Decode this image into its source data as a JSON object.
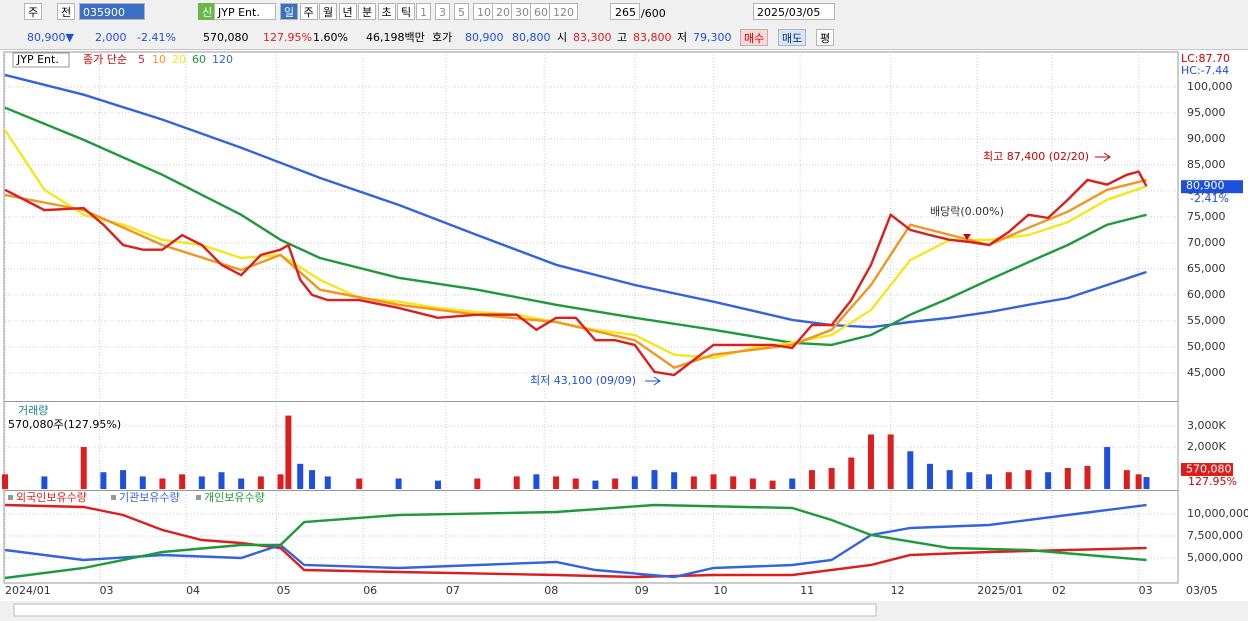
{
  "toolbar": {
    "period_unit": "주",
    "prev": "전",
    "code": "035900",
    "badge": "신",
    "name": "JYP Ent.",
    "periods": [
      "일",
      "주",
      "월",
      "년",
      "분",
      "초",
      "틱"
    ],
    "intervals": [
      "1",
      "3",
      "5",
      "10",
      "20",
      "30",
      "60",
      "120"
    ],
    "count": "265",
    "count_max": "/600",
    "date": "2025/03/05"
  },
  "quote": {
    "price": "80,900▼",
    "change": "2,000",
    "rate": "-2.41%",
    "volume": "570,080",
    "vol_ratio": "127.95%",
    "turnover": "1.60%",
    "amount": "46,198백만",
    "ask_label": "호가",
    "ask": "80,900",
    "bid": "80,800",
    "open_label": "시",
    "open": "83,300",
    "high_label": "고",
    "high": "83,800",
    "low_label": "저",
    "low": "79,300",
    "buy": "매수",
    "sell": "매도",
    "avg": "평"
  },
  "chart_data": [
    {
      "type": "line",
      "title": "JYP Ent.",
      "subtitle": "종가 단순",
      "xlim": [
        0,
        298
      ],
      "xticks": [
        {
          "value": 0,
          "label": "2024/01"
        },
        {
          "value": 24,
          "label": "03"
        },
        {
          "value": 46,
          "label": "04"
        },
        {
          "value": 69,
          "label": "05"
        },
        {
          "value": 91,
          "label": "06"
        },
        {
          "value": 112,
          "label": "07"
        },
        {
          "value": 137,
          "label": "08"
        },
        {
          "value": 160,
          "label": "09"
        },
        {
          "value": 180,
          "label": "10"
        },
        {
          "value": 202,
          "label": "11"
        },
        {
          "value": 225,
          "label": "12"
        },
        {
          "value": 247,
          "label": "2025/01"
        },
        {
          "value": 266,
          "label": "02"
        },
        {
          "value": 288,
          "label": "03"
        }
      ],
      "last_date": "03/05",
      "ylim": [
        39800,
        106700
      ],
      "yticks": [
        {
          "value": 45000,
          "label": "45,000"
        },
        {
          "value": 50000,
          "label": "50,000"
        },
        {
          "value": 55000,
          "label": "55,000"
        },
        {
          "value": 60000,
          "label": "60,000"
        },
        {
          "value": 65000,
          "label": "65,000"
        },
        {
          "value": 70000,
          "label": "70,000"
        },
        {
          "value": 75000,
          "label": "75,000"
        },
        {
          "value": 80000,
          "label": "80,000"
        },
        {
          "value": 85000,
          "label": "85,000"
        },
        {
          "value": 90000,
          "label": "90,000"
        },
        {
          "value": 95000,
          "label": "95,000"
        },
        {
          "value": 100000,
          "label": "100,000"
        }
      ],
      "grid": true,
      "series": [
        {
          "name": "120",
          "color": "#3464dc",
          "x": [
            0,
            20,
            40,
            60,
            80,
            100,
            120,
            140,
            160,
            180,
            200,
            210,
            220,
            230,
            240,
            250,
            260,
            270,
            280,
            290
          ],
          "values": [
            102300,
            98500,
            93700,
            88300,
            82500,
            77300,
            71500,
            65800,
            61900,
            58700,
            55200,
            54200,
            53800,
            54800,
            55600,
            56700,
            58100,
            59400,
            61900,
            64400
          ]
        },
        {
          "name": "60",
          "color": "#1e9a3c",
          "x": [
            0,
            20,
            40,
            60,
            70,
            80,
            100,
            120,
            140,
            160,
            180,
            200,
            210,
            220,
            230,
            240,
            250,
            260,
            270,
            280,
            290
          ],
          "values": [
            96000,
            89800,
            83100,
            75400,
            70600,
            67100,
            63300,
            61000,
            58100,
            55600,
            53300,
            50800,
            50400,
            52300,
            56200,
            59400,
            62900,
            66300,
            69600,
            73500,
            75400
          ]
        },
        {
          "name": "20",
          "color": "#f5e61e",
          "x": [
            0,
            10,
            20,
            30,
            40,
            50,
            60,
            70,
            80,
            90,
            100,
            110,
            120,
            130,
            140,
            150,
            160,
            170,
            180,
            190,
            200,
            210,
            220,
            230,
            240,
            250,
            260,
            270,
            280,
            290
          ],
          "values": [
            91700,
            80200,
            75400,
            73500,
            70600,
            69600,
            67100,
            67700,
            62900,
            59400,
            58700,
            57500,
            56700,
            56200,
            54800,
            53300,
            52300,
            48500,
            47900,
            49800,
            50800,
            52300,
            57100,
            66700,
            70600,
            70600,
            71500,
            74000,
            78300,
            80900
          ]
        },
        {
          "name": "10",
          "color": "#f0961e",
          "x": [
            0,
            20,
            40,
            60,
            70,
            80,
            100,
            120,
            140,
            160,
            170,
            180,
            200,
            210,
            220,
            230,
            250,
            260,
            270,
            280,
            290
          ],
          "values": [
            79200,
            76300,
            69600,
            64800,
            67700,
            61000,
            58100,
            56200,
            54800,
            51300,
            46000,
            48500,
            50400,
            53300,
            61900,
            73500,
            69600,
            72900,
            76000,
            80200,
            82100
          ]
        },
        {
          "name": "5",
          "color": "#dc1e1e",
          "x": [
            0,
            10,
            20,
            25,
            30,
            35,
            40,
            45,
            50,
            55,
            60,
            65,
            70,
            72,
            75,
            78,
            82,
            90,
            100,
            110,
            120,
            130,
            135,
            140,
            145,
            150,
            155,
            160,
            165,
            170,
            175,
            180,
            185,
            190,
            195,
            200,
            205,
            210,
            215,
            220,
            225,
            230,
            235,
            240,
            245,
            250,
            255,
            260,
            265,
            270,
            275,
            280,
            285,
            288,
            290
          ],
          "values": [
            80200,
            76300,
            76700,
            73500,
            69600,
            68700,
            68700,
            71500,
            69600,
            65800,
            63800,
            67700,
            68700,
            69600,
            62900,
            60000,
            59000,
            59000,
            57500,
            55600,
            56200,
            56200,
            53300,
            55600,
            55600,
            51300,
            51300,
            50400,
            45200,
            44600,
            47500,
            50400,
            50400,
            50400,
            50400,
            49800,
            54200,
            54200,
            59000,
            65800,
            75400,
            72500,
            71500,
            70600,
            70200,
            69600,
            72100,
            75400,
            74800,
            78300,
            82100,
            81200,
            83100,
            83700,
            80900
          ]
        }
      ],
      "high_label": "최고 87,400 (02/20)",
      "dividend_label": "배당락(0.00%)",
      "low_label": "최저 43,100 (09/09)",
      "lc": "LC:87.70",
      "hc": "HC:-7.44",
      "last_value": {
        "value": 80900,
        "label": "80,900"
      },
      "last_change": "-2.41%"
    },
    {
      "type": "bar",
      "title": "거래량",
      "subtitle": "570,080주(127.95%)",
      "xlim": [
        0,
        298
      ],
      "ylim": [
        0,
        4100
      ],
      "yticks": [
        {
          "value": 2000,
          "label": "2,000K"
        },
        {
          "value": 3000,
          "label": "3,000K"
        }
      ],
      "up_color": "#dc1e1e",
      "down_color": "#1e50dc",
      "x": [
        0,
        10,
        20,
        25,
        30,
        35,
        40,
        45,
        50,
        55,
        60,
        65,
        70,
        72,
        75,
        78,
        82,
        90,
        100,
        110,
        120,
        130,
        135,
        140,
        145,
        150,
        155,
        160,
        165,
        170,
        175,
        180,
        185,
        190,
        195,
        200,
        205,
        210,
        215,
        220,
        225,
        230,
        235,
        240,
        245,
        250,
        255,
        260,
        265,
        270,
        275,
        280,
        285,
        288,
        290
      ],
      "values": [
        700,
        600,
        2000,
        800,
        900,
        600,
        500,
        700,
        600,
        800,
        500,
        600,
        700,
        3500,
        1200,
        900,
        600,
        500,
        500,
        400,
        500,
        600,
        700,
        600,
        500,
        400,
        500,
        600,
        900,
        800,
        600,
        700,
        600,
        500,
        400,
        500,
        900,
        1000,
        1500,
        2600,
        2600,
        1800,
        1200,
        900,
        800,
        700,
        800,
        900,
        800,
        1000,
        1100,
        2000,
        900,
        700,
        570.08
      ],
      "last_label": "570,080",
      "last_ratio": "127.95%"
    },
    {
      "type": "line",
      "xlim": [
        0,
        298
      ],
      "ylim": [
        2160000,
        12500000
      ],
      "yticks": [
        {
          "value": 5000000,
          "label": "5,000,000"
        },
        {
          "value": 7500000,
          "label": "7,500,000"
        },
        {
          "value": 10000000,
          "label": "10,000,000"
        }
      ],
      "series": [
        {
          "name": "외국인보유수량",
          "color": "#dc1e1e",
          "x": [
            0,
            20,
            30,
            40,
            50,
            60,
            70,
            76,
            100,
            140,
            160,
            180,
            200,
            220,
            230,
            250,
            270,
            290
          ],
          "values": [
            11020000,
            10800000,
            9890000,
            8180000,
            7050000,
            6700000,
            6140000,
            3640000,
            3410000,
            3070000,
            2840000,
            3070000,
            3070000,
            4200000,
            5340000,
            5680000,
            5910000,
            6140000
          ]
        },
        {
          "name": "기관보유수량",
          "color": "#3464dc",
          "x": [
            0,
            20,
            40,
            60,
            70,
            76,
            100,
            120,
            140,
            150,
            170,
            180,
            200,
            210,
            220,
            230,
            250,
            270,
            290
          ],
          "values": [
            5910000,
            4770000,
            5340000,
            5000000,
            6480000,
            4200000,
            3860000,
            4200000,
            4550000,
            3640000,
            2840000,
            3860000,
            4200000,
            4770000,
            7610000,
            8410000,
            8750000,
            9890000,
            11020000
          ]
        },
        {
          "name": "개인보유수량",
          "color": "#1e9a3c",
          "x": [
            0,
            20,
            40,
            60,
            70,
            76,
            100,
            140,
            165,
            200,
            210,
            220,
            240,
            260,
            290
          ],
          "values": [
            2730000,
            3860000,
            5680000,
            6480000,
            6480000,
            9090000,
            9890000,
            10230000,
            11020000,
            10680000,
            9320000,
            7610000,
            6140000,
            5910000,
            4770000
          ]
        }
      ]
    }
  ]
}
